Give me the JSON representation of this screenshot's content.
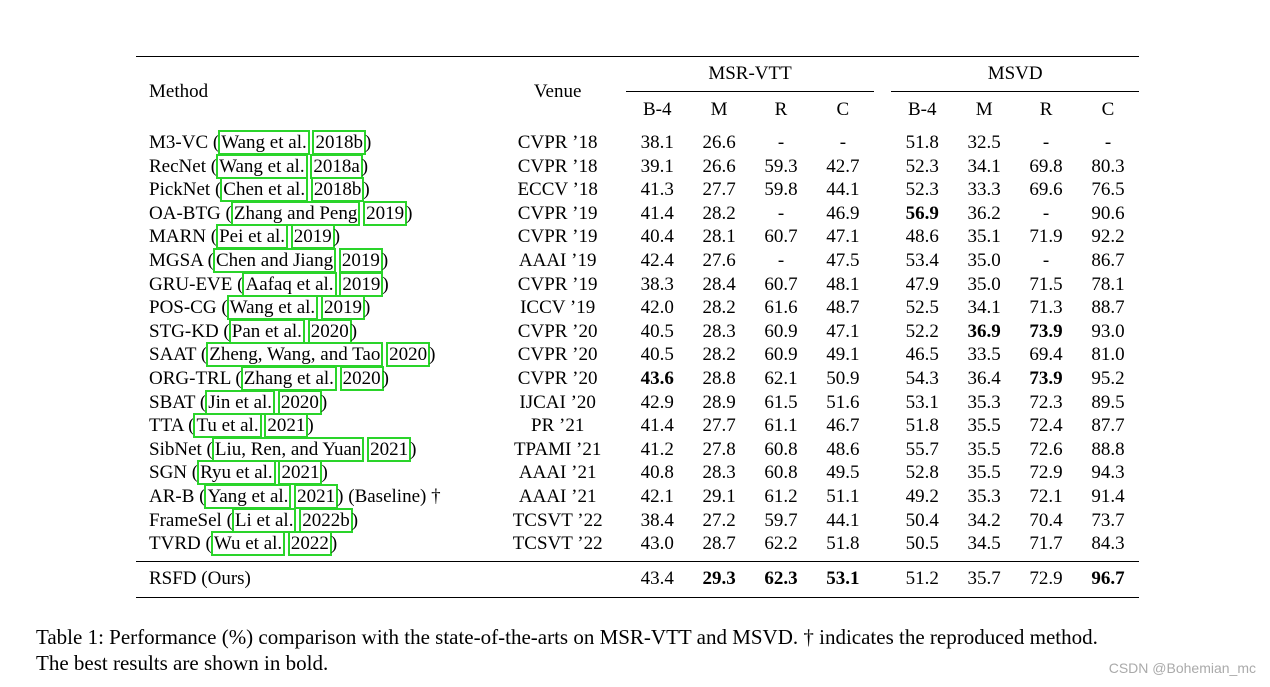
{
  "table": {
    "header": {
      "method": "Method",
      "venue": "Venue",
      "group1": "MSR-VTT",
      "group2": "MSVD",
      "metrics": [
        "B-4",
        "M",
        "R",
        "C"
      ]
    },
    "rows": [
      {
        "name": "M3-VC",
        "pre": " (",
        "cite_a": "Wang et al.",
        "cite_b": "2018b",
        "post": ")",
        "venue": "CVPR ’18",
        "vals": [
          "38.1",
          "26.6",
          "-",
          "-",
          "51.8",
          "32.5",
          "-",
          "-"
        ],
        "bold": []
      },
      {
        "name": "RecNet",
        "pre": " (",
        "cite_a": "Wang et al.",
        "cite_b": "2018a",
        "post": ")",
        "venue": "CVPR ’18",
        "vals": [
          "39.1",
          "26.6",
          "59.3",
          "42.7",
          "52.3",
          "34.1",
          "69.8",
          "80.3"
        ],
        "bold": []
      },
      {
        "name": "PickNet",
        "pre": " (",
        "cite_a": "Chen et al.",
        "cite_b": "2018b",
        "post": ")",
        "venue": "ECCV ’18",
        "vals": [
          "41.3",
          "27.7",
          "59.8",
          "44.1",
          "52.3",
          "33.3",
          "69.6",
          "76.5"
        ],
        "bold": []
      },
      {
        "name": "OA-BTG",
        "pre": " (",
        "cite_a": "Zhang and Peng",
        "cite_b": "2019",
        "post": ")",
        "venue": "CVPR ’19",
        "vals": [
          "41.4",
          "28.2",
          "-",
          "46.9",
          "56.9",
          "36.2",
          "-",
          "90.6"
        ],
        "bold": [
          4
        ]
      },
      {
        "name": "MARN",
        "pre": " (",
        "cite_a": "Pei et al.",
        "cite_b": "2019",
        "post": ")",
        "venue": "CVPR ’19",
        "vals": [
          "40.4",
          "28.1",
          "60.7",
          "47.1",
          "48.6",
          "35.1",
          "71.9",
          "92.2"
        ],
        "bold": []
      },
      {
        "name": "MGSA",
        "pre": " (",
        "cite_a": "Chen and Jiang",
        "cite_b": "2019",
        "post": ")",
        "venue": "AAAI ’19",
        "vals": [
          "42.4",
          "27.6",
          "-",
          "47.5",
          "53.4",
          "35.0",
          "-",
          "86.7"
        ],
        "bold": []
      },
      {
        "name": "GRU-EVE",
        "pre": " (",
        "cite_a": "Aafaq et al.",
        "cite_b": "2019",
        "post": ")",
        "venue": "CVPR ’19",
        "vals": [
          "38.3",
          "28.4",
          "60.7",
          "48.1",
          "47.9",
          "35.0",
          "71.5",
          "78.1"
        ],
        "bold": []
      },
      {
        "name": "POS-CG",
        "pre": " (",
        "cite_a": "Wang et al.",
        "cite_b": "2019",
        "post": ")",
        "venue": "ICCV ’19",
        "vals": [
          "42.0",
          "28.2",
          "61.6",
          "48.7",
          "52.5",
          "34.1",
          "71.3",
          "88.7"
        ],
        "bold": []
      },
      {
        "name": "STG-KD",
        "pre": " (",
        "cite_a": "Pan et al.",
        "cite_b": "2020",
        "post": ")",
        "venue": "CVPR ’20",
        "vals": [
          "40.5",
          "28.3",
          "60.9",
          "47.1",
          "52.2",
          "36.9",
          "73.9",
          "93.0"
        ],
        "bold": [
          5,
          6
        ]
      },
      {
        "name": "SAAT",
        "pre": " (",
        "cite_a": "Zheng, Wang, and Tao",
        "cite_b": "2020",
        "post": ")",
        "venue": "CVPR ’20",
        "vals": [
          "40.5",
          "28.2",
          "60.9",
          "49.1",
          "46.5",
          "33.5",
          "69.4",
          "81.0"
        ],
        "bold": []
      },
      {
        "name": "ORG-TRL",
        "pre": " (",
        "cite_a": "Zhang et al.",
        "cite_b": "2020",
        "post": ")",
        "venue": "CVPR ’20",
        "vals": [
          "43.6",
          "28.8",
          "62.1",
          "50.9",
          "54.3",
          "36.4",
          "73.9",
          "95.2"
        ],
        "bold": [
          0,
          6
        ]
      },
      {
        "name": "SBAT",
        "pre": " (",
        "cite_a": "Jin et al.",
        "cite_b": "2020",
        "post": ")",
        "venue": "IJCAI ’20",
        "vals": [
          "42.9",
          "28.9",
          "61.5",
          "51.6",
          "53.1",
          "35.3",
          "72.3",
          "89.5"
        ],
        "bold": []
      },
      {
        "name": "TTA",
        "pre": " (",
        "cite_a": "Tu et al.",
        "cite_b": "2021",
        "post": ")",
        "venue": "PR ’21",
        "vals": [
          "41.4",
          "27.7",
          "61.1",
          "46.7",
          "51.8",
          "35.5",
          "72.4",
          "87.7"
        ],
        "bold": []
      },
      {
        "name": "SibNet",
        "pre": " (",
        "cite_a": "Liu, Ren, and Yuan",
        "cite_b": "2021",
        "post": ")",
        "venue": "TPAMI ’21",
        "vals": [
          "41.2",
          "27.8",
          "60.8",
          "48.6",
          "55.7",
          "35.5",
          "72.6",
          "88.8"
        ],
        "bold": []
      },
      {
        "name": "SGN",
        "pre": " (",
        "cite_a": "Ryu et al.",
        "cite_b": "2021",
        "post": ")",
        "venue": "AAAI ’21",
        "vals": [
          "40.8",
          "28.3",
          "60.8",
          "49.5",
          "52.8",
          "35.5",
          "72.9",
          "94.3"
        ],
        "bold": []
      },
      {
        "name": "AR-B",
        "pre": " (",
        "cite_a": "Yang et al.",
        "cite_b": "2021",
        "post": ") (Baseline) †",
        "venue": "AAAI ’21",
        "vals": [
          "42.1",
          "29.1",
          "61.2",
          "51.1",
          "49.2",
          "35.3",
          "72.1",
          "91.4"
        ],
        "bold": []
      },
      {
        "name": "FrameSel",
        "pre": " (",
        "cite_a": "Li et al.",
        "cite_b": "2022b",
        "post": ")",
        "venue": "TCSVT ’22",
        "vals": [
          "38.4",
          "27.2",
          "59.7",
          "44.1",
          "50.4",
          "34.2",
          "70.4",
          "73.7"
        ],
        "bold": []
      },
      {
        "name": "TVRD",
        "pre": " (",
        "cite_a": "Wu et al.",
        "cite_b": "2022",
        "post": ")",
        "venue": "TCSVT ’22",
        "vals": [
          "43.0",
          "28.7",
          "62.2",
          "51.8",
          "50.5",
          "34.5",
          "71.7",
          "84.3"
        ],
        "bold": []
      }
    ],
    "ours": {
      "name": "RSFD (Ours)",
      "venue": "",
      "vals": [
        "43.4",
        "29.3",
        "62.3",
        "53.1",
        "51.2",
        "35.7",
        "72.9",
        "96.7"
      ],
      "bold": [
        1,
        2,
        3,
        7
      ]
    },
    "cite_box_color": "#2ad42a"
  },
  "caption": {
    "line1": "Table 1: Performance (%) comparison with the state-of-the-arts on MSR-VTT and MSVD. † indicates the reproduced method.",
    "line2": "The best results are shown in bold."
  },
  "watermark": "CSDN @Bohemian_mc"
}
